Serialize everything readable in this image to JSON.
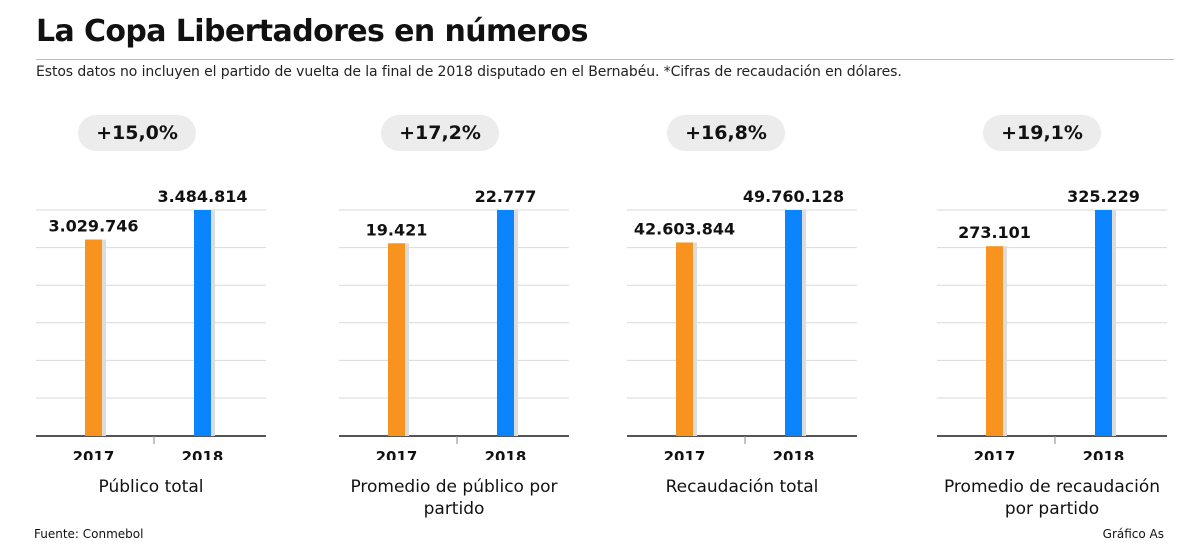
{
  "header": {
    "title": "La Copa Libertadores en números",
    "subtitle": "Estos datos no incluyen el partido de vuelta de la final de 2018 disputado en el Bernabéu. *Cifras de recaudación en dólares."
  },
  "footer": {
    "source": "Fuente: Conmebol",
    "credit": "Gráfico As"
  },
  "colors": {
    "bar_2017": "#f7931e",
    "bar_2018": "#0a84ff",
    "pill_bg": "#ececec",
    "grid": "#d9d9d9"
  },
  "chart_data": [
    {
      "type": "bar",
      "label": "Público total",
      "change": "+15,0%",
      "categories": [
        "2017",
        "2018"
      ],
      "values": [
        3029746,
        3484814
      ],
      "value_labels": [
        "3.029.746",
        "3.484.814"
      ]
    },
    {
      "type": "bar",
      "label": "Promedio de público por partido",
      "change": "+17,2%",
      "categories": [
        "2017",
        "2018"
      ],
      "values": [
        19421,
        22777
      ],
      "value_labels": [
        "19.421",
        "22.777"
      ]
    },
    {
      "type": "bar",
      "label": "Recaudación total",
      "change": "+16,8%",
      "categories": [
        "2017",
        "2018"
      ],
      "values": [
        42603844,
        49760128
      ],
      "value_labels": [
        "42.603.844",
        "49.760.128"
      ]
    },
    {
      "type": "bar",
      "label": "Promedio de recaudación por partido",
      "change": "+19,1%",
      "categories": [
        "2017",
        "2018"
      ],
      "values": [
        273101,
        325229
      ],
      "value_labels": [
        "273.101",
        "325.229"
      ]
    }
  ]
}
